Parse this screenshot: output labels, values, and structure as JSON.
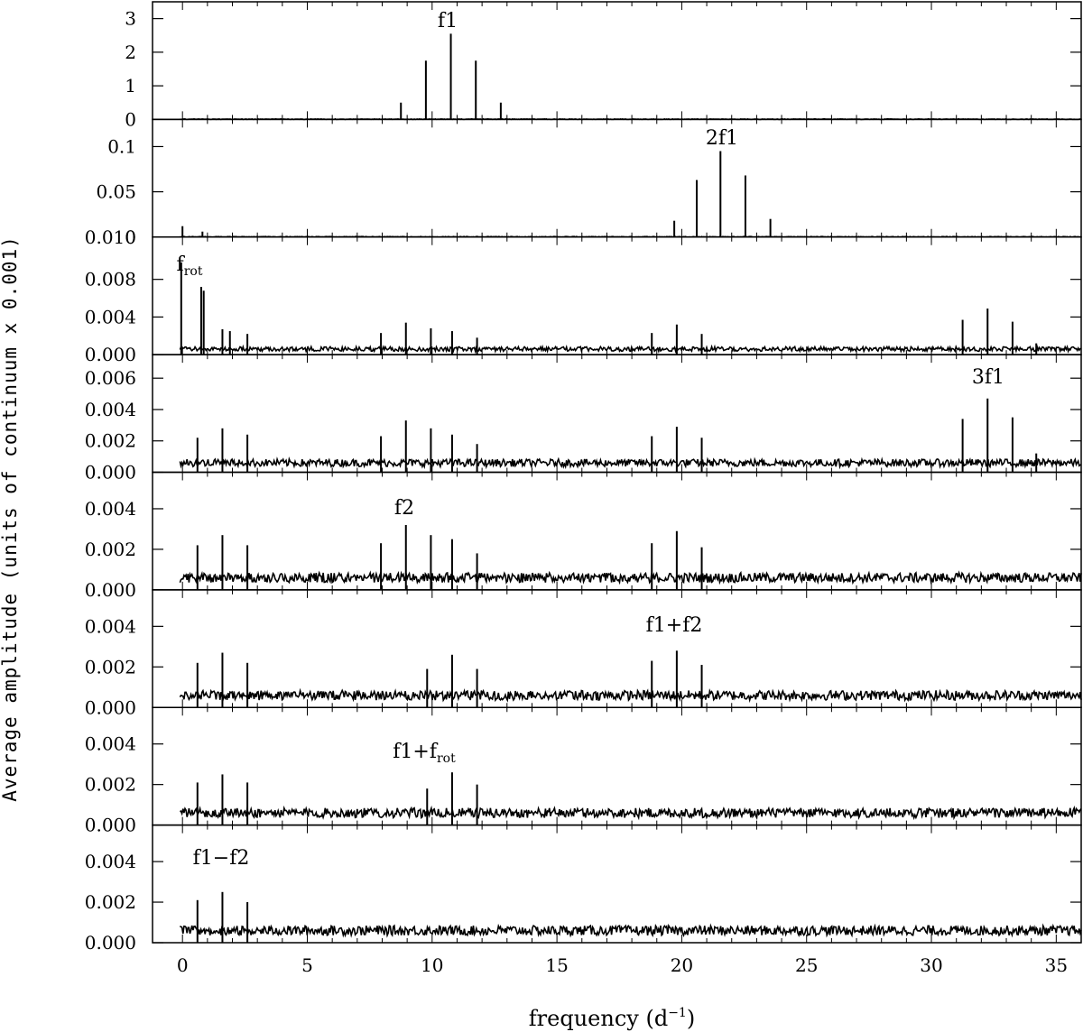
{
  "chart_data": {
    "type": "line",
    "xlabel": "frequency (d",
    "xlabel_sup": "−1",
    "xlabel_close": ")",
    "ylabel": "Average amplitude (units of continuum x 0.001)",
    "xlim": [
      -1.2,
      36
    ],
    "xticks": [
      0,
      5,
      10,
      15,
      20,
      25,
      30,
      35
    ],
    "grid": false,
    "panels": [
      {
        "id": "f1",
        "ylim": [
          0,
          3.5
        ],
        "yticks": [
          0,
          1,
          2,
          3
        ],
        "ytick_labels": [
          "0",
          "1",
          "2",
          "3"
        ],
        "annotation": "f1",
        "noise": 0.03,
        "peaks": [
          [
            8.75,
            0.5
          ],
          [
            9.75,
            1.75
          ],
          [
            10.75,
            2.55
          ],
          [
            11.75,
            1.75
          ],
          [
            12.75,
            0.5
          ]
        ]
      },
      {
        "id": "2f1",
        "ylim": [
          0,
          0.13
        ],
        "yticks": [
          0,
          0.05,
          0.1
        ],
        "ytick_labels": [
          "0",
          "0.05",
          "0.1"
        ],
        "annotation": "2f1",
        "noise": 0.0012,
        "peaks": [
          [
            0,
            0.012
          ],
          [
            0.8,
            0.006
          ],
          [
            19.7,
            0.018
          ],
          [
            20.6,
            0.063
          ],
          [
            21.55,
            0.095
          ],
          [
            22.55,
            0.068
          ],
          [
            23.55,
            0.02
          ]
        ]
      },
      {
        "id": "frot",
        "ylim": [
          0,
          0.0125
        ],
        "yticks": [
          0,
          0.004,
          0.008
        ],
        "ytick_labels": [
          "0.000",
          "0.004",
          "0.008"
        ],
        "extra_top_label": "0.010",
        "annotation": "f",
        "annotation_sub": "rot",
        "noise": 0.0006,
        "peaks": [
          [
            -0.05,
            0.0098
          ],
          [
            0.75,
            0.0072
          ],
          [
            0.85,
            0.0068
          ],
          [
            1.6,
            0.0027
          ],
          [
            1.9,
            0.0025
          ],
          [
            2.6,
            0.0022
          ],
          [
            7.95,
            0.0023
          ],
          [
            8.95,
            0.0034
          ],
          [
            9.95,
            0.0028
          ],
          [
            10.8,
            0.0025
          ],
          [
            11.8,
            0.0018
          ],
          [
            18.8,
            0.0023
          ],
          [
            19.8,
            0.0032
          ],
          [
            20.8,
            0.0022
          ],
          [
            31.25,
            0.0037
          ],
          [
            32.25,
            0.0049
          ],
          [
            33.25,
            0.0035
          ],
          [
            34.2,
            0.0012
          ]
        ]
      },
      {
        "id": "3f1",
        "ylim": [
          0,
          0.0075
        ],
        "yticks": [
          0,
          0.002,
          0.004,
          0.006
        ],
        "ytick_labels": [
          "0.000",
          "0.002",
          "0.004",
          "0.006"
        ],
        "annotation": "3f1",
        "noise": 0.0006,
        "peaks": [
          [
            0.6,
            0.0022
          ],
          [
            1.6,
            0.0028
          ],
          [
            2.6,
            0.0024
          ],
          [
            7.95,
            0.0023
          ],
          [
            8.95,
            0.0033
          ],
          [
            9.95,
            0.0028
          ],
          [
            10.8,
            0.0024
          ],
          [
            11.8,
            0.0018
          ],
          [
            18.8,
            0.0023
          ],
          [
            19.8,
            0.0029
          ],
          [
            20.8,
            0.0022
          ],
          [
            31.25,
            0.0034
          ],
          [
            32.25,
            0.0047
          ],
          [
            33.25,
            0.0035
          ],
          [
            34.2,
            0.0012
          ]
        ]
      },
      {
        "id": "f2",
        "ylim": [
          0,
          0.0058
        ],
        "yticks": [
          0,
          0.002,
          0.004
        ],
        "ytick_labels": [
          "0.000",
          "0.002",
          "0.004"
        ],
        "annotation": "f2",
        "noise": 0.0006,
        "peaks": [
          [
            0.6,
            0.0022
          ],
          [
            1.6,
            0.0027
          ],
          [
            2.6,
            0.0022
          ],
          [
            7.95,
            0.0023
          ],
          [
            8.95,
            0.0032
          ],
          [
            9.95,
            0.0027
          ],
          [
            10.8,
            0.0025
          ],
          [
            11.8,
            0.0018
          ],
          [
            18.8,
            0.0023
          ],
          [
            19.8,
            0.0029
          ],
          [
            20.8,
            0.0021
          ]
        ]
      },
      {
        "id": "f1+f2",
        "ylim": [
          0,
          0.0058
        ],
        "yticks": [
          0,
          0.002,
          0.004
        ],
        "ytick_labels": [
          "0.000",
          "0.002",
          "0.004"
        ],
        "annotation": "f1+f2",
        "noise": 0.0006,
        "peaks": [
          [
            0.6,
            0.0022
          ],
          [
            1.6,
            0.0027
          ],
          [
            2.6,
            0.0022
          ],
          [
            9.8,
            0.0019
          ],
          [
            10.8,
            0.0026
          ],
          [
            11.8,
            0.0019
          ],
          [
            18.8,
            0.0023
          ],
          [
            19.8,
            0.0028
          ],
          [
            20.8,
            0.0021
          ]
        ]
      },
      {
        "id": "f1+frot",
        "ylim": [
          0,
          0.0058
        ],
        "yticks": [
          0,
          0.002,
          0.004
        ],
        "ytick_labels": [
          "0.000",
          "0.002",
          "0.004"
        ],
        "annotation": "f1+f",
        "annotation_sub": "rot",
        "noise": 0.0006,
        "peaks": [
          [
            0.6,
            0.0021
          ],
          [
            1.6,
            0.0025
          ],
          [
            2.6,
            0.0021
          ],
          [
            9.8,
            0.0018
          ],
          [
            10.8,
            0.0026
          ],
          [
            11.8,
            0.002
          ]
        ]
      },
      {
        "id": "f1-f2",
        "ylim": [
          0,
          0.0058
        ],
        "yticks": [
          0,
          0.002,
          0.004
        ],
        "ytick_labels": [
          "0.000",
          "0.002",
          "0.004"
        ],
        "annotation": "f1−f2",
        "noise": 0.0006,
        "peaks": [
          [
            0.6,
            0.0021
          ],
          [
            1.6,
            0.0025
          ],
          [
            2.6,
            0.002
          ]
        ]
      }
    ]
  }
}
